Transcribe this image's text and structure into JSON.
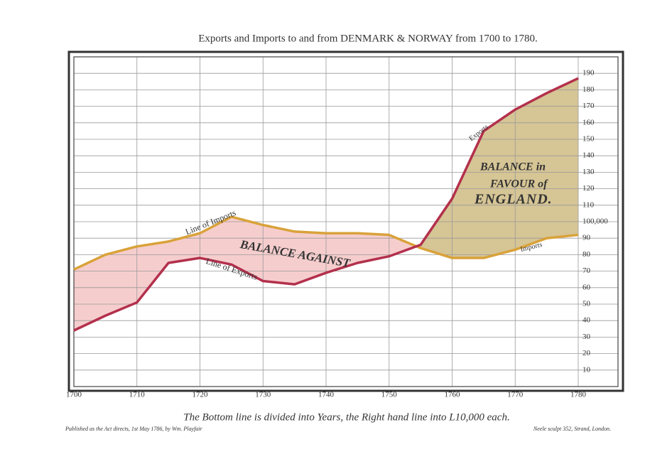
{
  "chart_data": {
    "type": "line",
    "title": "Exports and Imports to and from DENMARK & NORWAY from 1700 to 1780.",
    "x": [
      1700,
      1705,
      1710,
      1715,
      1720,
      1725,
      1730,
      1735,
      1740,
      1745,
      1750,
      1755,
      1760,
      1765,
      1770,
      1775,
      1780
    ],
    "series": [
      {
        "name": "Line of Imports",
        "color": "#d9a23a",
        "values": [
          71,
          80,
          85,
          88,
          93,
          103,
          98,
          94,
          93,
          93,
          92,
          84,
          78,
          78,
          83,
          90,
          92
        ]
      },
      {
        "name": "Line of Exports",
        "color": "#b3304c",
        "values": [
          34,
          43,
          51,
          75,
          78,
          74,
          64,
          62,
          69,
          75,
          79,
          86,
          114,
          155,
          168,
          178,
          187
        ]
      }
    ],
    "fill_against": "#f6cdcd",
    "fill_favour": "#d6c595",
    "xlim": [
      1700,
      1780
    ],
    "xticks": [
      1700,
      1710,
      1720,
      1730,
      1740,
      1750,
      1760,
      1770,
      1780
    ],
    "ylim": [
      0,
      200
    ],
    "yticks": [
      10,
      20,
      30,
      40,
      50,
      60,
      70,
      80,
      90,
      {
        "value": 100,
        "label": "100,000"
      },
      110,
      120,
      130,
      140,
      150,
      160,
      170,
      180,
      190
    ],
    "grid": true,
    "annotations": [
      "BALANCE AGAINST",
      "BALANCE in",
      "FAVOUR of",
      "ENGLAND.",
      "Exports",
      "Imports"
    ],
    "footer": "The Bottom line is divided into Years, the Right hand line into L10,000 each.",
    "publisher": "Published as the Act directs, 1st May 1786, by Wm. Playfair",
    "engraver": "Neele sculpt 352, Strand, London."
  }
}
